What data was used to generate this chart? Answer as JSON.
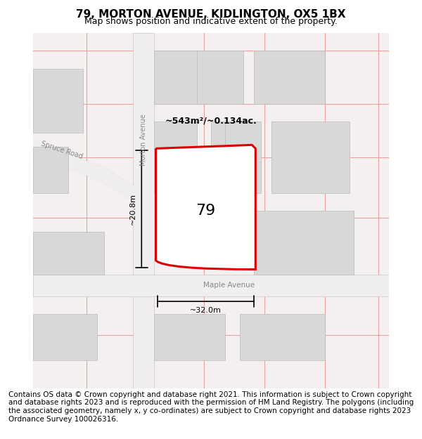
{
  "title": "79, MORTON AVENUE, KIDLINGTON, OX5 1BX",
  "subtitle": "Map shows position and indicative extent of the property.",
  "footer": "Contains OS data © Crown copyright and database right 2021. This information is subject to Crown copyright and database rights 2023 and is reproduced with the permission of HM Land Registry. The polygons (including the associated geometry, namely x, y co-ordinates) are subject to Crown copyright and database rights 2023 Ordnance Survey 100026316.",
  "area_label": "~543m²/~0.134ac.",
  "property_number": "79",
  "dim_width": "~32.0m",
  "dim_height": "~20.8m",
  "street_morton": "Morton Avenue",
  "street_spruce": "Spruce Road",
  "street_maple": "Maple Avenue",
  "map_bg": "#ffffff",
  "block_color": "#d8d8d8",
  "road_line_color": "#c8c8c8",
  "grid_line_color": "#e8a0a0",
  "property_outline_color": "#dd0000",
  "title_fontsize": 11,
  "subtitle_fontsize": 9,
  "footer_fontsize": 7.5
}
